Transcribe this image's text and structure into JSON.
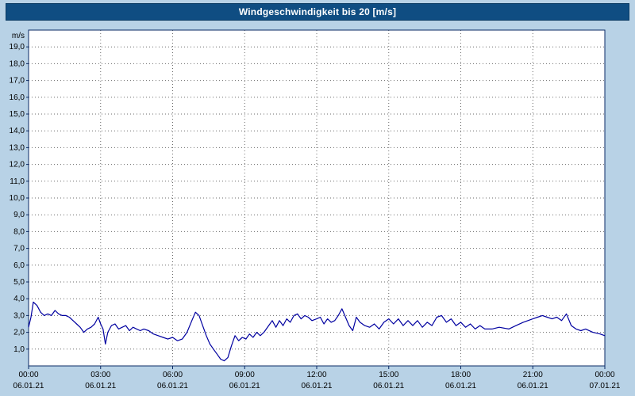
{
  "title_bar": {
    "title": "Windgeschwindigkeit bis 20 [m/s]"
  },
  "colors": {
    "background": "#b8d2e6",
    "title_bar_bg": "#0f4d82",
    "title_text": "#ffffff",
    "plot_bg": "#ffffff",
    "plot_border": "#0a2a66",
    "grid": "#6a6a6a",
    "line": "#0000a0",
    "tick_text": "#000000"
  },
  "chart_data": {
    "type": "line",
    "title": "Windgeschwindigkeit bis 20 [m/s]",
    "ylabel": "m/s",
    "xlabel": "",
    "ylim": [
      0,
      20
    ],
    "xlim_hours": [
      0,
      24
    ],
    "grid": true,
    "legend": "none",
    "y_ticks": [
      {
        "value": 1,
        "label": "1,0"
      },
      {
        "value": 2,
        "label": "2,0"
      },
      {
        "value": 3,
        "label": "3,0"
      },
      {
        "value": 4,
        "label": "4,0"
      },
      {
        "value": 5,
        "label": "5,0"
      },
      {
        "value": 6,
        "label": "6,0"
      },
      {
        "value": 7,
        "label": "7,0"
      },
      {
        "value": 8,
        "label": "8,0"
      },
      {
        "value": 9,
        "label": "9,0"
      },
      {
        "value": 10,
        "label": "10,0"
      },
      {
        "value": 11,
        "label": "11,0"
      },
      {
        "value": 12,
        "label": "12,0"
      },
      {
        "value": 13,
        "label": "13,0"
      },
      {
        "value": 14,
        "label": "14,0"
      },
      {
        "value": 15,
        "label": "15,0"
      },
      {
        "value": 16,
        "label": "16,0"
      },
      {
        "value": 17,
        "label": "17,0"
      },
      {
        "value": 18,
        "label": "18,0"
      },
      {
        "value": 19,
        "label": "19,0"
      }
    ],
    "x_ticks": [
      {
        "hour": 0,
        "time": "00:00",
        "date": "06.01.21"
      },
      {
        "hour": 3,
        "time": "03:00",
        "date": "06.01.21"
      },
      {
        "hour": 6,
        "time": "06:00",
        "date": "06.01.21"
      },
      {
        "hour": 9,
        "time": "09:00",
        "date": "06.01.21"
      },
      {
        "hour": 12,
        "time": "12:00",
        "date": "06.01.21"
      },
      {
        "hour": 15,
        "time": "15:00",
        "date": "06.01.21"
      },
      {
        "hour": 18,
        "time": "18:00",
        "date": "06.01.21"
      },
      {
        "hour": 21,
        "time": "21:00",
        "date": "06.01.21"
      },
      {
        "hour": 24,
        "time": "00:00",
        "date": "07.01.21"
      }
    ],
    "series": [
      {
        "name": "Windgeschwindigkeit",
        "unit": "m/s",
        "points": [
          [
            0,
            2.3
          ],
          [
            0.1,
            2.9
          ],
          [
            0.2,
            3.8
          ],
          [
            0.35,
            3.6
          ],
          [
            0.5,
            3.2
          ],
          [
            0.65,
            3.0
          ],
          [
            0.8,
            3.1
          ],
          [
            0.95,
            3.0
          ],
          [
            1.1,
            3.3
          ],
          [
            1.25,
            3.1
          ],
          [
            1.4,
            3.0
          ],
          [
            1.55,
            3.0
          ],
          [
            1.7,
            2.9
          ],
          [
            1.85,
            2.7
          ],
          [
            2.0,
            2.5
          ],
          [
            2.15,
            2.3
          ],
          [
            2.3,
            2.0
          ],
          [
            2.45,
            2.2
          ],
          [
            2.6,
            2.3
          ],
          [
            2.75,
            2.5
          ],
          [
            2.9,
            2.9
          ],
          [
            3.0,
            2.5
          ],
          [
            3.1,
            2.2
          ],
          [
            3.2,
            1.3
          ],
          [
            3.3,
            2.0
          ],
          [
            3.45,
            2.4
          ],
          [
            3.6,
            2.5
          ],
          [
            3.75,
            2.2
          ],
          [
            3.9,
            2.3
          ],
          [
            4.05,
            2.4
          ],
          [
            4.2,
            2.1
          ],
          [
            4.35,
            2.3
          ],
          [
            4.5,
            2.2
          ],
          [
            4.65,
            2.1
          ],
          [
            4.8,
            2.2
          ],
          [
            5.0,
            2.1
          ],
          [
            5.2,
            1.9
          ],
          [
            5.4,
            1.8
          ],
          [
            5.6,
            1.7
          ],
          [
            5.8,
            1.6
          ],
          [
            6.0,
            1.7
          ],
          [
            6.2,
            1.5
          ],
          [
            6.4,
            1.6
          ],
          [
            6.6,
            2.0
          ],
          [
            6.8,
            2.7
          ],
          [
            6.95,
            3.2
          ],
          [
            7.1,
            3.0
          ],
          [
            7.25,
            2.4
          ],
          [
            7.4,
            1.8
          ],
          [
            7.55,
            1.3
          ],
          [
            7.7,
            1.0
          ],
          [
            7.85,
            0.7
          ],
          [
            8.0,
            0.4
          ],
          [
            8.15,
            0.3
          ],
          [
            8.3,
            0.5
          ],
          [
            8.45,
            1.2
          ],
          [
            8.6,
            1.8
          ],
          [
            8.75,
            1.5
          ],
          [
            8.9,
            1.7
          ],
          [
            9.05,
            1.6
          ],
          [
            9.2,
            1.9
          ],
          [
            9.35,
            1.7
          ],
          [
            9.5,
            2.0
          ],
          [
            9.65,
            1.8
          ],
          [
            9.8,
            2.0
          ],
          [
            10.0,
            2.4
          ],
          [
            10.15,
            2.7
          ],
          [
            10.3,
            2.3
          ],
          [
            10.45,
            2.7
          ],
          [
            10.6,
            2.4
          ],
          [
            10.75,
            2.8
          ],
          [
            10.9,
            2.6
          ],
          [
            11.05,
            3.0
          ],
          [
            11.2,
            3.1
          ],
          [
            11.35,
            2.8
          ],
          [
            11.5,
            3.0
          ],
          [
            11.65,
            2.9
          ],
          [
            11.8,
            2.7
          ],
          [
            12.0,
            2.8
          ],
          [
            12.15,
            2.9
          ],
          [
            12.3,
            2.5
          ],
          [
            12.45,
            2.8
          ],
          [
            12.6,
            2.6
          ],
          [
            12.75,
            2.7
          ],
          [
            12.9,
            3.0
          ],
          [
            13.05,
            3.4
          ],
          [
            13.2,
            2.9
          ],
          [
            13.35,
            2.4
          ],
          [
            13.5,
            2.1
          ],
          [
            13.65,
            2.9
          ],
          [
            13.8,
            2.6
          ],
          [
            14.0,
            2.4
          ],
          [
            14.2,
            2.3
          ],
          [
            14.4,
            2.5
          ],
          [
            14.6,
            2.2
          ],
          [
            14.8,
            2.6
          ],
          [
            15.0,
            2.8
          ],
          [
            15.2,
            2.5
          ],
          [
            15.4,
            2.8
          ],
          [
            15.6,
            2.4
          ],
          [
            15.8,
            2.7
          ],
          [
            16.0,
            2.4
          ],
          [
            16.2,
            2.7
          ],
          [
            16.4,
            2.3
          ],
          [
            16.6,
            2.6
          ],
          [
            16.8,
            2.4
          ],
          [
            17.0,
            2.9
          ],
          [
            17.2,
            3.0
          ],
          [
            17.4,
            2.6
          ],
          [
            17.6,
            2.8
          ],
          [
            17.8,
            2.4
          ],
          [
            18.0,
            2.6
          ],
          [
            18.2,
            2.3
          ],
          [
            18.4,
            2.5
          ],
          [
            18.6,
            2.2
          ],
          [
            18.8,
            2.4
          ],
          [
            19.0,
            2.2
          ],
          [
            19.3,
            2.2
          ],
          [
            19.6,
            2.3
          ],
          [
            20.0,
            2.2
          ],
          [
            20.3,
            2.4
          ],
          [
            20.6,
            2.6
          ],
          [
            21.0,
            2.8
          ],
          [
            21.2,
            2.9
          ],
          [
            21.4,
            3.0
          ],
          [
            21.6,
            2.9
          ],
          [
            21.8,
            2.8
          ],
          [
            22.0,
            2.9
          ],
          [
            22.2,
            2.7
          ],
          [
            22.4,
            3.1
          ],
          [
            22.6,
            2.4
          ],
          [
            22.8,
            2.2
          ],
          [
            23.0,
            2.1
          ],
          [
            23.2,
            2.2
          ],
          [
            23.5,
            2.0
          ],
          [
            23.8,
            1.9
          ],
          [
            24.0,
            1.8
          ]
        ]
      }
    ]
  }
}
